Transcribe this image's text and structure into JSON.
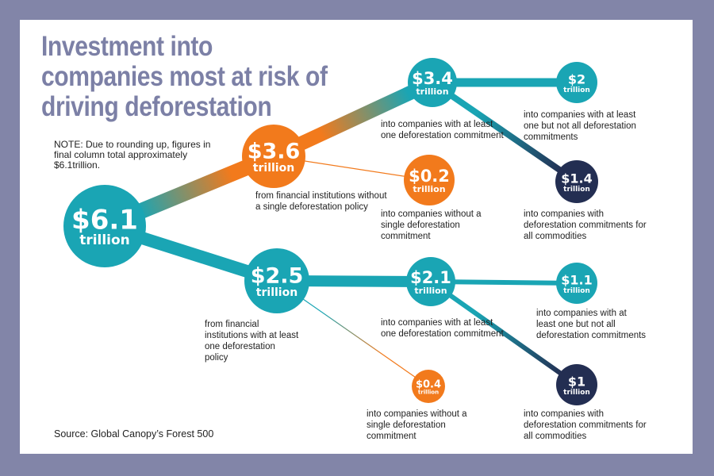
{
  "title": "Investment into companies most at risk of driving deforestation",
  "note": "NOTE: Due to rounding up, figures in final column total approximately $6.1trillion.",
  "source": "Source: Global Canopy’s Forest 500",
  "colors": {
    "teal": "#1aa5b4",
    "orange": "#f27a1c",
    "navy": "#232e52",
    "title": "#7c80a6",
    "frame": "#8285a8"
  },
  "unit": "trillion",
  "nodes": [
    {
      "id": "total",
      "value": "$6.1",
      "color": "teal",
      "label": ""
    },
    {
      "id": "no-policy",
      "value": "$3.6",
      "color": "orange",
      "label": "from financial institutions without a single deforestation policy"
    },
    {
      "id": "with-policy",
      "value": "$2.5",
      "color": "teal",
      "label": "from financial institutions with at least one deforestation policy"
    },
    {
      "id": "np-commitment",
      "value": "$3.4",
      "color": "teal",
      "label": "into companies with at least one deforestation commitment"
    },
    {
      "id": "np-no-commitment",
      "value": "$0.2",
      "color": "orange",
      "label": "into companies without a single deforestation commitment"
    },
    {
      "id": "np-some",
      "value": "$2",
      "color": "teal",
      "label": "into companies with at least one but not all deforestation commitments"
    },
    {
      "id": "np-all",
      "value": "$1.4",
      "color": "navy",
      "label": "into companies with deforestation commitments for all commodities"
    },
    {
      "id": "wp-commitment",
      "value": "$2.1",
      "color": "teal",
      "label": "into companies with at least one deforestation commitment"
    },
    {
      "id": "wp-no-commitment",
      "value": "$0.4",
      "color": "orange",
      "label": "into companies without a single deforestation commitment"
    },
    {
      "id": "wp-some",
      "value": "$1.1",
      "color": "teal",
      "label": "into companies with at least one but not all deforestation commitments"
    },
    {
      "id": "wp-all",
      "value": "$1",
      "color": "navy",
      "label": "into companies with deforestation commitments for all commodities"
    }
  ],
  "links": [
    {
      "from": "total",
      "to": "no-policy"
    },
    {
      "from": "total",
      "to": "with-policy"
    },
    {
      "from": "no-policy",
      "to": "np-commitment"
    },
    {
      "from": "no-policy",
      "to": "np-no-commitment"
    },
    {
      "from": "np-commitment",
      "to": "np-some"
    },
    {
      "from": "np-commitment",
      "to": "np-all"
    },
    {
      "from": "with-policy",
      "to": "wp-commitment"
    },
    {
      "from": "with-policy",
      "to": "wp-no-commitment"
    },
    {
      "from": "wp-commitment",
      "to": "wp-some"
    },
    {
      "from": "wp-commitment",
      "to": "wp-all"
    }
  ]
}
